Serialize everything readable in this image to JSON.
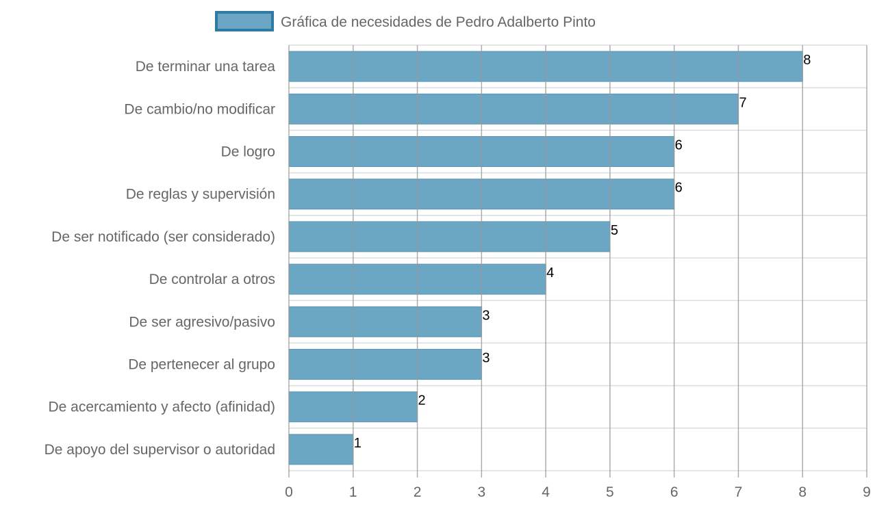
{
  "chart_data": {
    "type": "bar",
    "orientation": "horizontal",
    "categories": [
      "De terminar una tarea",
      "De cambio/no modificar",
      "De logro",
      "De reglas y supervisión",
      "De ser notificado (ser considerado)",
      "De controlar a otros",
      "De ser agresivo/pasivo",
      "De pertenecer al grupo",
      "De acercamiento y afecto (afinidad)",
      "De apoyo del supervisor o autoridad"
    ],
    "series": [
      {
        "name": "Gráfica de necesidades de Pedro Adalberto Pinto",
        "values": [
          8,
          7,
          6,
          6,
          5,
          4,
          3,
          3,
          2,
          1
        ]
      }
    ],
    "value_labels": [
      "8",
      "7",
      "6",
      "6",
      "5",
      "4",
      "3",
      "3",
      "2",
      "1"
    ],
    "xlim": [
      0,
      9
    ],
    "x_ticks": [
      "0",
      "1",
      "2",
      "3",
      "4",
      "5",
      "6",
      "7",
      "8",
      "9"
    ],
    "grid": true,
    "legend_position": "top",
    "colors": {
      "bar_fill": "#6ba6c4",
      "bar_stroke": "#5a96b5",
      "legend_border": "#2e7ba3",
      "grid": "#999999",
      "row_line": "#dddddd"
    }
  }
}
